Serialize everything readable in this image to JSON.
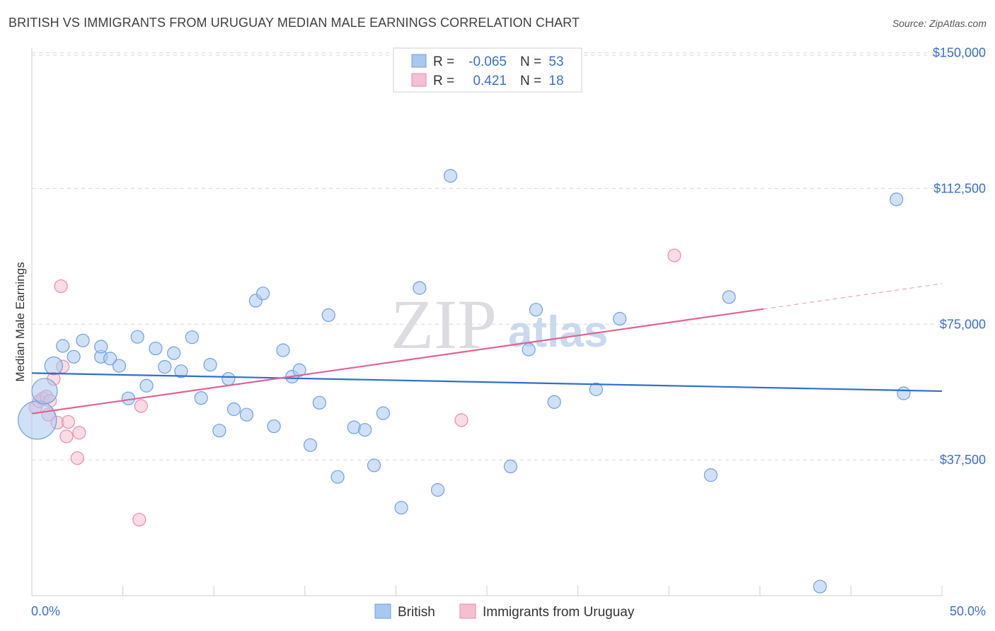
{
  "header": {
    "title": "BRITISH VS IMMIGRANTS FROM URUGUAY MEDIAN MALE EARNINGS CORRELATION CHART",
    "source": "Source: ZipAtlas.com"
  },
  "watermark": {
    "zip": "ZIP",
    "atlas": "atlas"
  },
  "stats": {
    "r_label": "R =",
    "n_label": "N =",
    "rows": [
      {
        "series": "British",
        "r": "-0.065",
        "n": "53"
      },
      {
        "series": "Immigrants from Uruguay",
        "r": "0.421",
        "n": "18"
      }
    ]
  },
  "colors": {
    "british_fill": "#a9c8f0",
    "british_stroke": "#6d9fe0",
    "british_line": "#2f6fcc",
    "uruguay_fill": "#f6bfd0",
    "uruguay_stroke": "#ea8aaa",
    "uruguay_line": "#e0648f",
    "grid": "#d8d8d8",
    "axis_text": "#3a6fc8"
  },
  "chart_data": {
    "type": "scatter",
    "title": "BRITISH VS IMMIGRANTS FROM URUGUAY MEDIAN MALE EARNINGS CORRELATION CHART",
    "xlabel": "",
    "ylabel": "Median Male Earnings",
    "xlim": [
      0,
      50
    ],
    "ylim": [
      0,
      155000
    ],
    "x_tick_labels": [
      "0.0%",
      "50.0%"
    ],
    "y_ticks": [
      {
        "value": 37500,
        "label": "$37,500"
      },
      {
        "value": 75000,
        "label": "$75,000"
      },
      {
        "value": 112500,
        "label": "$112,500"
      },
      {
        "value": 150000,
        "label": "$150,000"
      }
    ],
    "legend": [
      "British",
      "Immigrants from Uruguay"
    ],
    "series": [
      {
        "name": "British",
        "points": [
          {
            "x": 0.3,
            "y": 48500,
            "s": 3
          },
          {
            "x": 0.7,
            "y": 56500,
            "s": 2
          },
          {
            "x": 1.2,
            "y": 63500,
            "s": 1.4
          },
          {
            "x": 1.7,
            "y": 69000,
            "s": 1
          },
          {
            "x": 2.3,
            "y": 66000,
            "s": 1
          },
          {
            "x": 2.8,
            "y": 70500,
            "s": 1
          },
          {
            "x": 3.8,
            "y": 66000,
            "s": 1
          },
          {
            "x": 3.8,
            "y": 68800,
            "s": 1
          },
          {
            "x": 4.3,
            "y": 65500,
            "s": 1
          },
          {
            "x": 4.8,
            "y": 63500,
            "s": 1
          },
          {
            "x": 5.3,
            "y": 54500,
            "s": 1
          },
          {
            "x": 5.8,
            "y": 71500,
            "s": 1
          },
          {
            "x": 6.3,
            "y": 58000,
            "s": 1
          },
          {
            "x": 6.8,
            "y": 68300,
            "s": 1
          },
          {
            "x": 7.3,
            "y": 63200,
            "s": 1
          },
          {
            "x": 7.8,
            "y": 67000,
            "s": 1
          },
          {
            "x": 8.2,
            "y": 62000,
            "s": 1
          },
          {
            "x": 8.8,
            "y": 71400,
            "s": 1
          },
          {
            "x": 9.3,
            "y": 54600,
            "s": 1
          },
          {
            "x": 9.8,
            "y": 63800,
            "s": 1
          },
          {
            "x": 10.3,
            "y": 45600,
            "s": 1
          },
          {
            "x": 10.8,
            "y": 59900,
            "s": 1
          },
          {
            "x": 11.1,
            "y": 51500,
            "s": 1
          },
          {
            "x": 11.8,
            "y": 50000,
            "s": 1
          },
          {
            "x": 12.3,
            "y": 81500,
            "s": 1
          },
          {
            "x": 12.7,
            "y": 83500,
            "s": 1
          },
          {
            "x": 13.3,
            "y": 46800,
            "s": 1
          },
          {
            "x": 13.8,
            "y": 67800,
            "s": 1
          },
          {
            "x": 14.3,
            "y": 60500,
            "s": 1
          },
          {
            "x": 14.7,
            "y": 62300,
            "s": 1
          },
          {
            "x": 15.3,
            "y": 41600,
            "s": 1
          },
          {
            "x": 15.8,
            "y": 53300,
            "s": 1
          },
          {
            "x": 16.3,
            "y": 77500,
            "s": 1
          },
          {
            "x": 16.8,
            "y": 32800,
            "s": 1
          },
          {
            "x": 17.7,
            "y": 46500,
            "s": 1
          },
          {
            "x": 18.3,
            "y": 45800,
            "s": 1
          },
          {
            "x": 18.8,
            "y": 36000,
            "s": 1
          },
          {
            "x": 19.3,
            "y": 50400,
            "s": 1
          },
          {
            "x": 20.3,
            "y": 24300,
            "s": 1
          },
          {
            "x": 21.3,
            "y": 85000,
            "s": 1
          },
          {
            "x": 22.3,
            "y": 29200,
            "s": 1
          },
          {
            "x": 23.0,
            "y": 116000,
            "s": 1
          },
          {
            "x": 26.3,
            "y": 35700,
            "s": 1
          },
          {
            "x": 27.3,
            "y": 68000,
            "s": 1
          },
          {
            "x": 27.7,
            "y": 79000,
            "s": 1
          },
          {
            "x": 28.7,
            "y": 53500,
            "s": 1
          },
          {
            "x": 31.0,
            "y": 57000,
            "s": 1
          },
          {
            "x": 32.3,
            "y": 76500,
            "s": 1
          },
          {
            "x": 37.3,
            "y": 33300,
            "s": 1
          },
          {
            "x": 38.3,
            "y": 82500,
            "s": 1
          },
          {
            "x": 43.3,
            "y": 2500,
            "s": 1
          },
          {
            "x": 47.5,
            "y": 109500,
            "s": 1
          },
          {
            "x": 47.9,
            "y": 55900,
            "s": 1
          }
        ],
        "trend": {
          "x": [
            0,
            50
          ],
          "y": [
            61500,
            56500
          ]
        }
      },
      {
        "name": "Immigrants from Uruguay",
        "points": [
          {
            "x": 0.2,
            "y": 52000,
            "s": 1
          },
          {
            "x": 0.4,
            "y": 53700,
            "s": 1
          },
          {
            "x": 0.6,
            "y": 54500,
            "s": 1
          },
          {
            "x": 0.8,
            "y": 55000,
            "s": 1
          },
          {
            "x": 0.9,
            "y": 50000,
            "s": 1
          },
          {
            "x": 1.0,
            "y": 53800,
            "s": 1
          },
          {
            "x": 1.2,
            "y": 59900,
            "s": 1
          },
          {
            "x": 1.4,
            "y": 47800,
            "s": 1
          },
          {
            "x": 1.6,
            "y": 85500,
            "s": 1
          },
          {
            "x": 1.7,
            "y": 63300,
            "s": 1
          },
          {
            "x": 1.9,
            "y": 44000,
            "s": 1
          },
          {
            "x": 2.0,
            "y": 48000,
            "s": 1
          },
          {
            "x": 2.5,
            "y": 38000,
            "s": 1
          },
          {
            "x": 2.6,
            "y": 45000,
            "s": 1
          },
          {
            "x": 5.9,
            "y": 21000,
            "s": 1
          },
          {
            "x": 6.0,
            "y": 52400,
            "s": 1
          },
          {
            "x": 23.6,
            "y": 48500,
            "s": 1
          },
          {
            "x": 35.3,
            "y": 94000,
            "s": 1
          }
        ],
        "trend": {
          "x": [
            0,
            40.2
          ],
          "y": [
            50300,
            79200
          ]
        },
        "trend_extension": {
          "x": [
            40.2,
            50
          ],
          "y": [
            79200,
            86200
          ]
        }
      }
    ]
  }
}
